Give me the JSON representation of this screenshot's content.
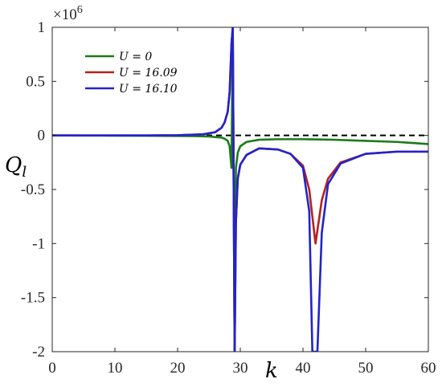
{
  "chart_data": {
    "type": "line",
    "title": "",
    "xlabel": "k",
    "ylabel": "Q",
    "ylabel_subscript": "l",
    "xlim": [
      0,
      60
    ],
    "ylim": [
      -2,
      1
    ],
    "x_ticks": [
      "0",
      "10",
      "20",
      "30",
      "40",
      "50",
      "60"
    ],
    "y_ticks": [
      "1",
      "0.5",
      "0",
      "-0.5",
      "-1",
      "-1.5",
      "-2"
    ],
    "y_multiplier": "×10",
    "y_multiplier_exp": "6",
    "reference_line": {
      "y": 0,
      "style": "dashed",
      "color": "#000000"
    },
    "grid": false,
    "legend_position": "top-left",
    "series": [
      {
        "name": "U = 0",
        "color": "#1a7a1a",
        "x": [
          0,
          5,
          10,
          15,
          20,
          23,
          25,
          26,
          27,
          27.5,
          28,
          28.3,
          28.6,
          28.8,
          29.1,
          29.3,
          29.6,
          30,
          31,
          33,
          36,
          40,
          45,
          50,
          55,
          60
        ],
        "y": [
          0,
          -0.001,
          -0.002,
          -0.003,
          -0.005,
          -0.007,
          -0.01,
          -0.015,
          -0.02,
          -0.03,
          -0.05,
          -0.1,
          -0.3,
          1,
          -2,
          -0.3,
          -0.16,
          -0.1,
          -0.06,
          -0.04,
          -0.035,
          -0.035,
          -0.04,
          -0.05,
          -0.06,
          -0.08
        ]
      },
      {
        "name": "U = 16.09",
        "color": "#b22222",
        "x": [
          0,
          5,
          10,
          15,
          20,
          24,
          26,
          27,
          27.5,
          28,
          28.3,
          28.6,
          28.8,
          29.1,
          29.3,
          29.6,
          30,
          31,
          33,
          36,
          38,
          40,
          41,
          42,
          43,
          44,
          46,
          50,
          55,
          60
        ],
        "y": [
          0,
          0,
          0,
          0,
          0.002,
          0.01,
          0.03,
          0.07,
          0.12,
          0.22,
          0.4,
          0.85,
          1,
          -2,
          -0.8,
          -0.4,
          -0.27,
          -0.18,
          -0.12,
          -0.13,
          -0.17,
          -0.28,
          -0.5,
          -1.0,
          -0.6,
          -0.4,
          -0.25,
          -0.17,
          -0.15,
          -0.15
        ]
      },
      {
        "name": "U = 16.10",
        "color": "#2323c8",
        "x": [
          0,
          5,
          10,
          15,
          20,
          24,
          26,
          27,
          27.5,
          28,
          28.3,
          28.6,
          28.8,
          29.1,
          29.3,
          29.6,
          30,
          31,
          33,
          36,
          38,
          40,
          41,
          41.5,
          42.3,
          43,
          44,
          46,
          50,
          55,
          60
        ],
        "y": [
          0,
          0,
          0,
          0,
          0.002,
          0.01,
          0.03,
          0.07,
          0.12,
          0.22,
          0.4,
          0.85,
          1,
          -2,
          -0.8,
          -0.4,
          -0.27,
          -0.18,
          -0.12,
          -0.13,
          -0.17,
          -0.3,
          -0.7,
          -2,
          -2,
          -0.9,
          -0.45,
          -0.26,
          -0.17,
          -0.15,
          -0.15
        ]
      }
    ]
  }
}
